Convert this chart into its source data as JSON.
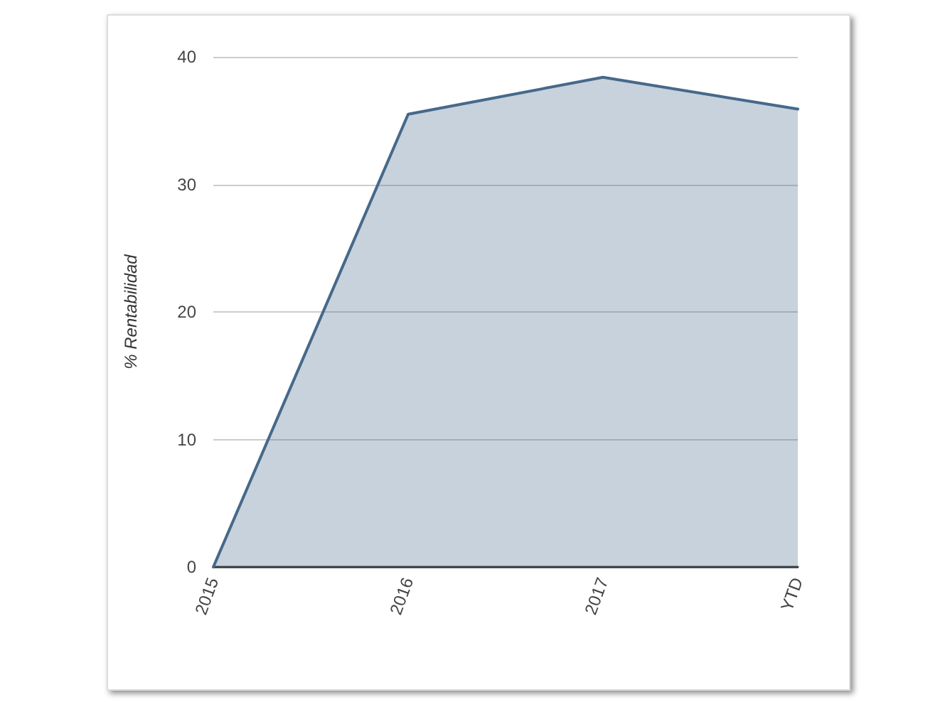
{
  "chart_data": {
    "type": "area",
    "ylabel": "% Rentabilidad",
    "categories": [
      "2015",
      "2016",
      "2017",
      "YTD"
    ],
    "series": [
      {
        "color": "#46698a",
        "values": [
          0,
          35.5,
          38.4,
          35.9
        ]
      }
    ],
    "ylim": [
      0,
      40
    ],
    "yticks": [
      0,
      10,
      20,
      30,
      40
    ],
    "grid": "y",
    "marker": "none",
    "line_style": "solid"
  }
}
